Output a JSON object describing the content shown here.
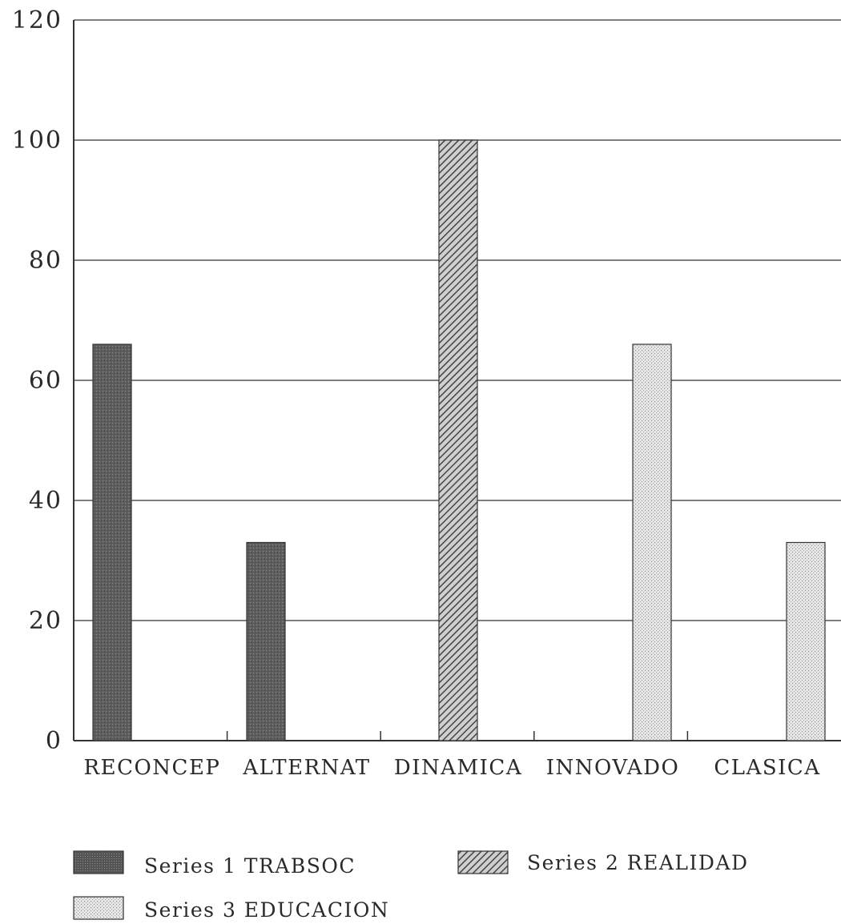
{
  "chart_data": {
    "type": "bar",
    "categories": [
      "RECONCEP",
      "ALTERNAT",
      "DINAMICA",
      "INNOVADO",
      "CLASICA"
    ],
    "series": [
      {
        "name": "Series 1 TRABSOC",
        "values": [
          66,
          33,
          0,
          0,
          0
        ],
        "pattern": "dark-stipple"
      },
      {
        "name": "Series 2 REALIDAD",
        "values": [
          0,
          0,
          100,
          0,
          0
        ],
        "pattern": "hatch"
      },
      {
        "name": "Series 3 EDUCACION",
        "values": [
          0,
          0,
          0,
          66,
          33
        ],
        "pattern": "light-dots"
      }
    ],
    "yticks": [
      "0",
      "20",
      "40",
      "60",
      "80",
      "100",
      "120"
    ],
    "ylim": [
      0,
      120
    ],
    "grid": true,
    "legend_position": "bottom",
    "colors": {
      "series1": "#5f5f5f",
      "series2": "#8a8a8a",
      "series3": "#d2d2d2",
      "grid": "#555555",
      "axis": "#333333"
    }
  }
}
